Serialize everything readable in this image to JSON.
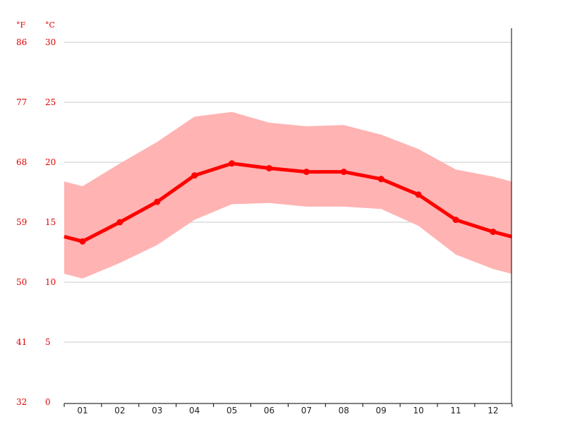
{
  "colors": {
    "line": "#ff0000",
    "band": "#ffb3b3",
    "axis_label": "#e00000",
    "grid": "#c8c8c8",
    "axis": "#000000",
    "month_label": "#222222"
  },
  "chart_data": {
    "type": "line",
    "title": "",
    "xlabel": "",
    "ylabel": "",
    "units": {
      "fahrenheit": "°F",
      "celsius": "°C"
    },
    "categories": [
      "01",
      "02",
      "03",
      "04",
      "05",
      "06",
      "07",
      "08",
      "09",
      "10",
      "11",
      "12"
    ],
    "y_ticks_celsius": [
      "0",
      "5",
      "10",
      "15",
      "20",
      "25",
      "30"
    ],
    "y_ticks_fahrenheit": [
      "32",
      "41",
      "50",
      "59",
      "68",
      "77",
      "86"
    ],
    "ylim": [
      0,
      30
    ],
    "grid": true,
    "series": [
      {
        "values": [
          13.4,
          15.0,
          16.7,
          18.9,
          19.9,
          19.5,
          19.2,
          19.2,
          18.6,
          17.3,
          15.2,
          14.2
        ]
      }
    ],
    "band": {
      "upper": [
        18.0,
        19.9,
        21.7,
        23.8,
        24.2,
        23.3,
        23.0,
        23.1,
        22.3,
        21.1,
        19.4,
        18.8
      ],
      "lower": [
        10.3,
        11.6,
        13.1,
        15.2,
        16.5,
        16.6,
        16.3,
        16.3,
        16.1,
        14.7,
        12.3,
        11.1
      ]
    }
  }
}
